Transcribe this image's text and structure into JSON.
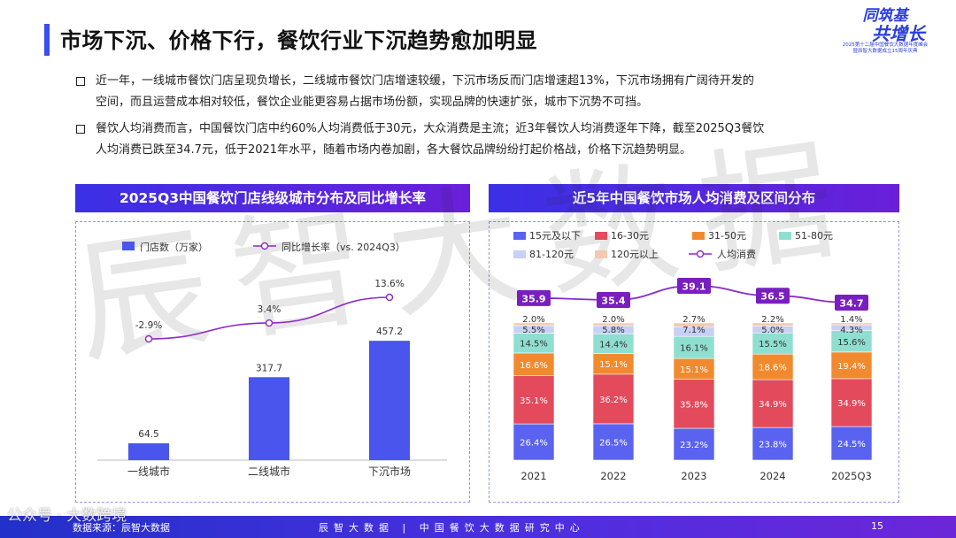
{
  "header": {
    "title": "市场下沉、价格下行，餐饮行业下沉趋势愈加明显",
    "logo_main_1": "同筑基",
    "logo_main_2": "共增长",
    "logo_sub_1": "2025第十二届中国餐饮大数据年度峰会",
    "logo_sub_2": "暨辰智大数据成立15周年庆典"
  },
  "bullets": [
    {
      "line1": "近一年，一线城市餐饮门店呈现负增长，二线城市餐饮门店增速较缓，下沉市场反而门店增速超13%，下沉市场拥有广阔待开发的",
      "line2": "空间，而且运营成本相对较低，餐饮企业能更容易占据市场份额，实现品牌的快速扩张，城市下沉势不可挡。"
    },
    {
      "line1": "餐饮人均消费而言，中国餐饮门店中约60%人均消费低于30元，大众消费是主流；近3年餐饮人均消费逐年下降，截至2025Q3餐饮",
      "line2": "人均消费已跌至34.7元，低于2021年水平，随着市场内卷加剧，各大餐饮品牌纷纷打起价格战，价格下沉趋势明显。"
    }
  ],
  "watermark": "辰智大数据",
  "footer": {
    "source": "数据来源：辰智大数据",
    "center": "辰智大数据 | 中国餐饮大数据研究中心",
    "page": "15",
    "wechat": "公众号 · 大数跨境"
  },
  "colors": {
    "accent": "#3a4df0",
    "bar": "#4a55ee",
    "line": "#8a2bc9"
  },
  "chart_data": [
    {
      "type": "bar",
      "title": "2025Q3中国餐饮门店线级城市分布及同比增长率",
      "categories": [
        "一线城市",
        "二线城市",
        "下沉市场"
      ],
      "series": [
        {
          "name": "门店数（万家）",
          "type": "bar",
          "values": [
            64.5,
            317.7,
            457.2
          ],
          "labels": [
            "64.5",
            "317.7",
            "457.2"
          ]
        },
        {
          "name": "同比增长率（vs. 2024Q3）",
          "type": "line",
          "values": [
            -2.9,
            3.4,
            13.6
          ],
          "labels": [
            "-2.9%",
            "3.4%",
            "13.6%"
          ]
        }
      ],
      "ylim": [
        0,
        520
      ],
      "legend": "top"
    },
    {
      "type": "bar",
      "stacked": true,
      "percent": true,
      "title": "近5年中国餐饮市场人均消费及区间分布",
      "categories": [
        "2021",
        "2022",
        "2023",
        "2024",
        "2025Q3"
      ],
      "series": [
        {
          "name": "15元及以下",
          "color": "#5a62f0",
          "values": [
            26.4,
            26.5,
            23.2,
            23.8,
            24.5
          ],
          "labels": [
            "26.4%",
            "26.5%",
            "23.2%",
            "23.8%",
            "24.5%"
          ]
        },
        {
          "name": "16-30元",
          "color": "#e34a5c",
          "values": [
            35.1,
            36.2,
            35.8,
            34.9,
            34.9
          ],
          "labels": [
            "35.1%",
            "36.2%",
            "35.8%",
            "34.9%",
            "34.9%"
          ]
        },
        {
          "name": "31-50元",
          "color": "#f18a2e",
          "values": [
            16.6,
            15.1,
            15.1,
            18.6,
            19.4
          ],
          "labels": [
            "16.6%",
            "15.1%",
            "15.1%",
            "18.6%",
            "19.4%"
          ]
        },
        {
          "name": "51-80元",
          "color": "#8fdfd0",
          "values": [
            14.5,
            14.4,
            16.1,
            15.5,
            15.6
          ],
          "labels": [
            "14.5%",
            "14.4%",
            "16.1%",
            "15.5%",
            "15.6%"
          ]
        },
        {
          "name": "81-120元",
          "color": "#c7d0f5",
          "values": [
            5.5,
            5.8,
            7.1,
            5.0,
            4.3
          ],
          "labels": [
            "5.5%",
            "5.8%",
            "7.1%",
            "5.0%",
            "4.3%"
          ]
        },
        {
          "name": "120元以上",
          "color": "#f3c9b2",
          "values": [
            2.0,
            2.0,
            2.7,
            2.2,
            1.4
          ],
          "labels": [
            "2.0%",
            "2.0%",
            "2.7%",
            "2.2%",
            "1.4%"
          ]
        },
        {
          "name": "人均消费",
          "type": "line",
          "color": "#8a2bc9",
          "values": [
            35.9,
            35.4,
            39.1,
            36.5,
            34.7
          ],
          "labels": [
            "35.9",
            "35.4",
            "39.1",
            "36.5",
            "34.7"
          ]
        }
      ],
      "legend": "top"
    }
  ]
}
